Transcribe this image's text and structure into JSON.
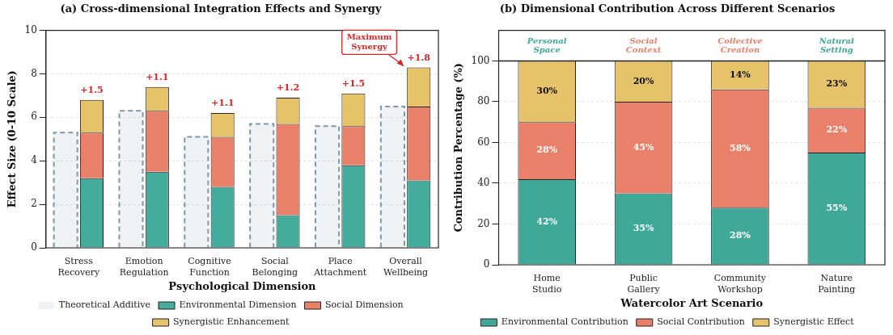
{
  "chart_data": [
    {
      "type": "bar",
      "title": "(a) Cross-dimensional Integration Effects and Synergy",
      "xlabel": "Psychological Dimension",
      "ylabel": "Effect Size (0-10 Scale)",
      "categories": [
        "Stress\nRecovery",
        "Emotion\nRegulation",
        "Cognitive\nFunction",
        "Social\nBelonging",
        "Place\nAttachment",
        "Overall\nWellbeing"
      ],
      "series": [
        {
          "name": "Theoretical Additive",
          "color": "#7f97a8",
          "line_style": "dashed",
          "base": [
            0,
            0,
            0,
            0,
            0,
            0
          ],
          "values": [
            5.3,
            6.3,
            5.1,
            5.7,
            5.6,
            6.5
          ]
        },
        {
          "name": "Environmental Dimension",
          "color": "#45ab9c",
          "base": [
            0,
            0,
            0,
            0,
            0,
            0
          ],
          "values": [
            3.2,
            3.5,
            2.8,
            1.5,
            3.8,
            3.1
          ]
        },
        {
          "name": "Social Dimension",
          "color": "#e8806a",
          "base": [
            3.2,
            3.5,
            2.8,
            1.5,
            3.8,
            3.1
          ],
          "values": [
            2.1,
            2.8,
            2.3,
            4.2,
            1.8,
            3.4
          ]
        },
        {
          "name": "Synergistic Enhancement",
          "color": "#e6c36b",
          "base": [
            5.3,
            6.3,
            5.1,
            5.7,
            5.6,
            6.5
          ],
          "values": [
            1.5,
            1.1,
            1.1,
            1.2,
            1.5,
            1.8
          ],
          "value_labels": [
            "+1.5",
            "+1.1",
            "+1.1",
            "+1.2",
            "+1.5",
            "+1.8"
          ]
        }
      ],
      "ylim": [
        0,
        10
      ],
      "yticks": [
        0,
        2,
        4,
        6,
        8,
        10
      ],
      "grid": "y",
      "legend": "bottom",
      "annotations": [
        {
          "text": "Maximum\nSynergy",
          "x": "Overall\nWellbeing",
          "y": 8.3
        }
      ]
    },
    {
      "type": "bar",
      "title": "(b) Dimensional Contribution Across Different Scenarios",
      "xlabel": "Watercolor Art Scenario",
      "ylabel": "Contribution Percentage (%)",
      "categories": [
        "Home\nStudio",
        "Public\nGallery",
        "Community\nWorkshop",
        "Nature\nPainting"
      ],
      "stacked": true,
      "series": [
        {
          "name": "Environmental Contribution",
          "color": "#3fa898",
          "values": [
            42,
            35,
            28,
            55
          ],
          "value_labels": [
            "42%",
            "35%",
            "28%",
            "55%"
          ]
        },
        {
          "name": "Social Contribution",
          "color": "#e8806a",
          "values": [
            28,
            45,
            58,
            22
          ],
          "value_labels": [
            "28%",
            "45%",
            "58%",
            "22%"
          ]
        },
        {
          "name": "Synergistic Effect",
          "color": "#e6c36b",
          "values": [
            30,
            20,
            14,
            23
          ],
          "value_labels": [
            "30%",
            "20%",
            "14%",
            "23%"
          ]
        }
      ],
      "ylim": [
        0,
        115
      ],
      "yticks": [
        0,
        20,
        40,
        60,
        80,
        100
      ],
      "grid": "y",
      "legend": "bottom",
      "ref_lines": [
        {
          "axis": "y",
          "value": 100
        }
      ],
      "annotations": [
        "Personal\nSpace",
        "Social\nContext",
        "Collective\nCreation",
        "Natural\nSetting"
      ]
    }
  ]
}
